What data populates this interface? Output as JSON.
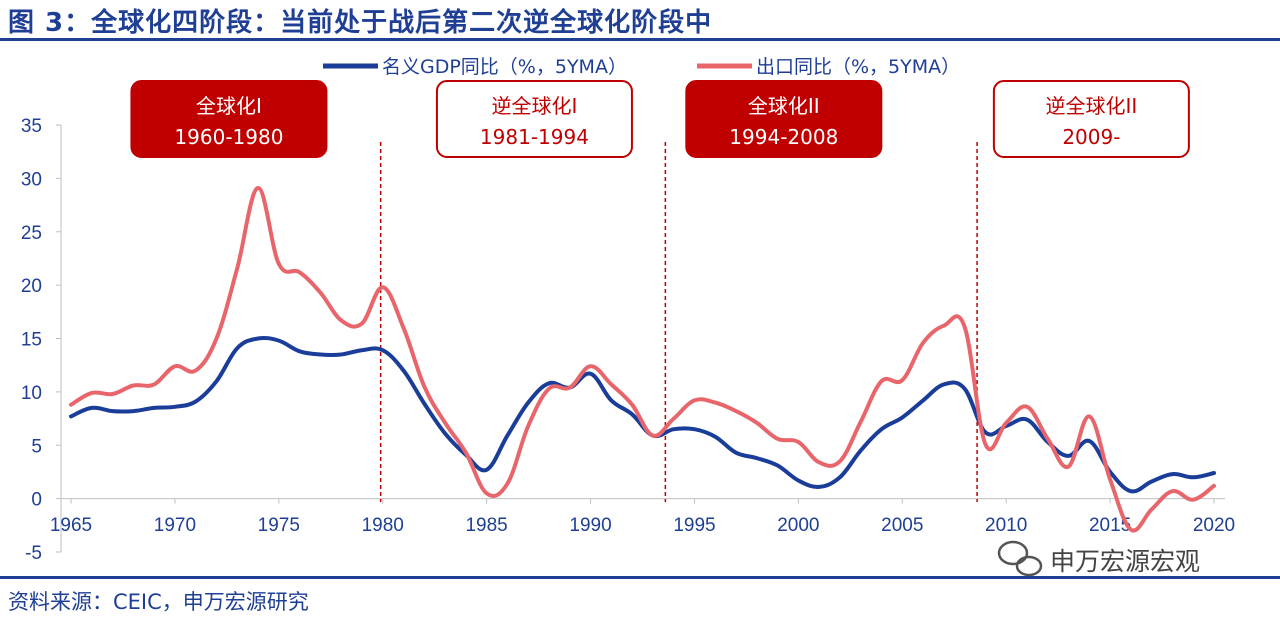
{
  "title": "图 3：全球化四阶段：当前处于战后第二次逆全球化阶段中",
  "source": "资料来源：CEIC，申万宏源研究",
  "watermark": "申万宏源宏观",
  "colors": {
    "gdp": "#1a3d9a",
    "export": "#e8666b",
    "dark_red": "#c00000",
    "text_blue": "#1f3f95"
  },
  "chart_data": {
    "type": "line",
    "title": "",
    "xlabel": "",
    "ylabel": "",
    "ylim": [
      -5,
      35
    ],
    "yticks": [
      -5,
      0,
      5,
      10,
      15,
      20,
      25,
      30,
      35
    ],
    "xlim": [
      1965,
      2020
    ],
    "xticks": [
      1965,
      1970,
      1975,
      1980,
      1985,
      1990,
      1995,
      2000,
      2005,
      2010,
      2015,
      2020
    ],
    "legend_position": "top-center",
    "grid": false,
    "series": [
      {
        "name": "名义GDP同比（%，5YMA）",
        "color": "#1a3d9a",
        "x": [
          1965,
          1966,
          1967,
          1968,
          1969,
          1970,
          1971,
          1972,
          1973,
          1974,
          1975,
          1976,
          1977,
          1978,
          1979,
          1980,
          1981,
          1982,
          1983,
          1984,
          1985,
          1986,
          1987,
          1988,
          1989,
          1990,
          1991,
          1992,
          1993,
          1994,
          1995,
          1996,
          1997,
          1998,
          1999,
          2000,
          2001,
          2002,
          2003,
          2004,
          2005,
          2006,
          2007,
          2008,
          2009,
          2010,
          2011,
          2012,
          2013,
          2014,
          2015,
          2016,
          2017,
          2018,
          2019,
          2020
        ],
        "values": [
          7.7,
          8.5,
          8.2,
          8.2,
          8.5,
          8.6,
          9.1,
          11.0,
          14.1,
          15.0,
          14.8,
          13.8,
          13.5,
          13.5,
          13.9,
          13.9,
          12.0,
          8.9,
          6.1,
          4.1,
          2.7,
          5.9,
          9.0,
          10.8,
          10.4,
          11.7,
          9.2,
          7.9,
          5.9,
          6.5,
          6.5,
          5.8,
          4.3,
          3.8,
          3.1,
          1.7,
          1.1,
          2.0,
          4.5,
          6.5,
          7.6,
          9.2,
          10.7,
          10.3,
          6.2,
          6.8,
          7.4,
          5.3,
          4.0,
          5.4,
          2.5,
          0.7,
          1.6,
          2.3,
          2.0,
          2.4
        ]
      },
      {
        "name": "出口同比（%，5YMA）",
        "color": "#e8666b",
        "x": [
          1965,
          1966,
          1967,
          1968,
          1969,
          1970,
          1971,
          1972,
          1973,
          1974,
          1975,
          1976,
          1977,
          1978,
          1979,
          1980,
          1981,
          1982,
          1983,
          1984,
          1985,
          1986,
          1987,
          1988,
          1989,
          1990,
          1991,
          1992,
          1993,
          1994,
          1995,
          1996,
          1997,
          1998,
          1999,
          2000,
          2001,
          2002,
          2003,
          2004,
          2005,
          2006,
          2007,
          2008,
          2009,
          2010,
          2011,
          2012,
          2013,
          2014,
          2015,
          2016,
          2017,
          2018,
          2019,
          2020
        ],
        "values": [
          8.8,
          9.9,
          9.8,
          10.6,
          10.7,
          12.4,
          12.0,
          15.0,
          21.6,
          29.1,
          22.0,
          21.2,
          19.3,
          16.7,
          16.4,
          19.8,
          16.0,
          10.5,
          7.1,
          4.3,
          0.5,
          1.4,
          6.8,
          10.3,
          10.4,
          12.4,
          10.7,
          8.8,
          5.9,
          7.5,
          9.2,
          9.0,
          8.2,
          7.1,
          5.6,
          5.3,
          3.4,
          3.5,
          7.2,
          11.0,
          11.1,
          14.6,
          16.2,
          16.1,
          5.1,
          7.1,
          8.6,
          5.6,
          3.0,
          7.7,
          1.8,
          -2.9,
          -1.0,
          0.7,
          -0.1,
          1.2
        ]
      }
    ],
    "phase_dividers": [
      1979.9,
      1993.6,
      2008.6
    ],
    "phases": [
      {
        "name": "全球化I",
        "years": "1960-1980",
        "filled": true,
        "center_year": 1972.6
      },
      {
        "name": "逆全球化I",
        "years": "1981-1994",
        "filled": false,
        "center_year": 1987.3
      },
      {
        "name": "全球化II",
        "years": "1994-2008",
        "filled": true,
        "center_year": 1999.3
      },
      {
        "name": "逆全球化II",
        "years": "2009-",
        "filled": false,
        "center_year": 2014.1
      }
    ]
  }
}
